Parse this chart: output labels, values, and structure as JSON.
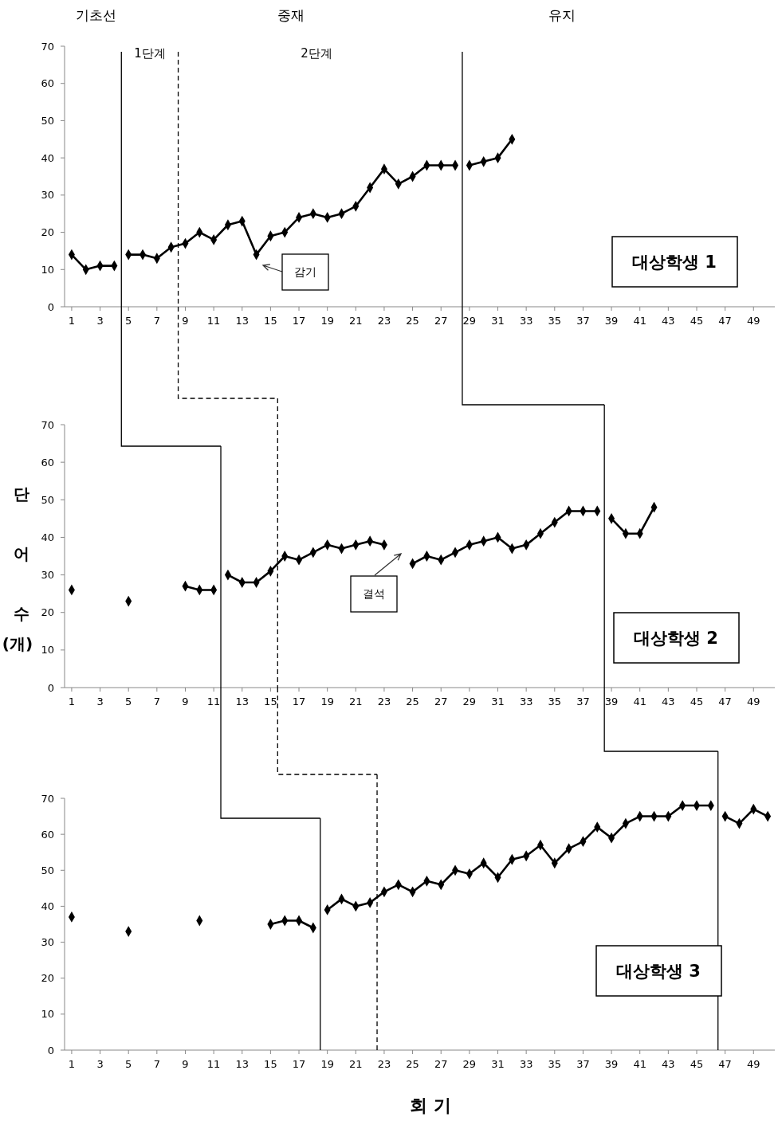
{
  "chart_data": [
    {
      "type": "line",
      "title": "대상학생 1",
      "xlim": [
        0.5,
        50.5
      ],
      "xticks": [
        1,
        3,
        5,
        7,
        9,
        11,
        13,
        15,
        17,
        19,
        21,
        23,
        25,
        27,
        29,
        31,
        33,
        35,
        37,
        39,
        41,
        43,
        45,
        47,
        49
      ],
      "ylim": [
        0,
        70
      ],
      "yticks": [
        0,
        10,
        20,
        30,
        40,
        50,
        60,
        70
      ],
      "marker": "diamond",
      "line_style": "solid",
      "series": [
        {
          "color": "#000000",
          "x": [
            1,
            2,
            3,
            4
          ],
          "values": [
            14,
            10,
            11,
            11
          ]
        },
        {
          "color": "#000000",
          "x": [
            5,
            6,
            7,
            8,
            9,
            10,
            11,
            12,
            13,
            14,
            15,
            16,
            17,
            18,
            19,
            20,
            21,
            22,
            23,
            24,
            25,
            26,
            27,
            28
          ],
          "values": [
            14,
            14,
            13,
            16,
            17,
            20,
            18,
            22,
            23,
            14,
            19,
            20,
            24,
            25,
            24,
            25,
            27,
            32,
            37,
            33,
            35,
            38,
            38,
            38
          ]
        },
        {
          "color": "#000000",
          "x": [
            29,
            30,
            31,
            32
          ],
          "values": [
            38,
            39,
            40,
            45
          ]
        }
      ],
      "ref_lines": [
        {
          "axis": "x",
          "value": 4.5,
          "color": "#000000",
          "line_style": "solid"
        },
        {
          "axis": "x",
          "value": 8.5,
          "color": "#000000",
          "line_style": "dashed"
        },
        {
          "axis": "x",
          "value": 28.5,
          "color": "#000000",
          "line_style": "solid"
        }
      ],
      "annotations": [
        "기초선",
        "중재",
        "유지",
        "1단계",
        "2단계",
        "감기"
      ]
    },
    {
      "type": "line",
      "title": "대상학생 2",
      "ylabel": "단\n어\n수\n(개)",
      "xlim": [
        0.5,
        50.5
      ],
      "xticks": [
        1,
        3,
        5,
        7,
        9,
        11,
        13,
        15,
        17,
        19,
        21,
        23,
        25,
        27,
        29,
        31,
        33,
        35,
        37,
        39,
        41,
        43,
        45,
        47,
        49
      ],
      "ylim": [
        0,
        70
      ],
      "yticks": [
        0,
        10,
        20,
        30,
        40,
        50,
        60,
        70
      ],
      "marker": "diamond",
      "line_style": "solid",
      "series": [
        {
          "color": "#000000",
          "x": [
            1,
            2,
            3,
            4,
            5,
            6,
            7,
            8,
            9,
            10,
            11
          ],
          "values": [
            26,
            null,
            null,
            null,
            23,
            null,
            null,
            null,
            27,
            26,
            26
          ]
        },
        {
          "color": "#000000",
          "x": [
            12,
            13,
            14,
            15,
            16,
            17,
            18,
            19,
            20,
            21,
            22,
            23,
            24,
            25,
            26,
            27,
            28,
            29,
            30,
            31,
            32,
            33,
            34,
            35,
            36,
            37,
            38
          ],
          "values": [
            30,
            28,
            28,
            31,
            35,
            34,
            36,
            38,
            37,
            38,
            39,
            38,
            null,
            33,
            35,
            34,
            36,
            38,
            39,
            40,
            37,
            38,
            41,
            44,
            47,
            47,
            47
          ]
        },
        {
          "color": "#000000",
          "x": [
            39,
            40,
            41,
            42
          ],
          "values": [
            45,
            41,
            41,
            48
          ]
        }
      ],
      "ref_lines": [
        {
          "axis": "x",
          "value": 11.5,
          "color": "#000000",
          "line_style": "solid"
        },
        {
          "axis": "x",
          "value": 15.5,
          "color": "#000000",
          "line_style": "dashed"
        },
        {
          "axis": "x",
          "value": 38.5,
          "color": "#000000",
          "line_style": "solid"
        }
      ],
      "annotations": [
        "결석"
      ]
    },
    {
      "type": "line",
      "title": "대상학생 3",
      "xlabel": "회 기",
      "xlim": [
        0.5,
        50.5
      ],
      "xticks": [
        1,
        3,
        5,
        7,
        9,
        11,
        13,
        15,
        17,
        19,
        21,
        23,
        25,
        27,
        29,
        31,
        33,
        35,
        37,
        39,
        41,
        43,
        45,
        47,
        49
      ],
      "ylim": [
        0,
        70
      ],
      "yticks": [
        0,
        10,
        20,
        30,
        40,
        50,
        60,
        70
      ],
      "marker": "diamond",
      "line_style": "solid",
      "series": [
        {
          "color": "#000000",
          "x": [
            1,
            2,
            3,
            4,
            5,
            6,
            7,
            8,
            9,
            10,
            11,
            12,
            13,
            14,
            15,
            16,
            17,
            18
          ],
          "values": [
            37,
            null,
            null,
            null,
            33,
            null,
            null,
            null,
            null,
            36,
            null,
            null,
            null,
            null,
            35,
            36,
            36,
            34
          ]
        },
        {
          "color": "#000000",
          "x": [
            19,
            20,
            21,
            22,
            23,
            24,
            25,
            26,
            27,
            28,
            29,
            30,
            31,
            32,
            33,
            34,
            35,
            36,
            37,
            38,
            39,
            40,
            41,
            42,
            43,
            44,
            45,
            46
          ],
          "values": [
            39,
            42,
            40,
            41,
            44,
            46,
            44,
            47,
            46,
            50,
            49,
            52,
            48,
            53,
            54,
            57,
            52,
            56,
            58,
            62,
            59,
            63,
            65,
            65,
            65,
            68,
            68,
            68
          ]
        },
        {
          "color": "#000000",
          "x": [
            47,
            48,
            49,
            50
          ],
          "values": [
            65,
            63,
            67,
            65
          ]
        }
      ],
      "ref_lines": [
        {
          "axis": "x",
          "value": 18.5,
          "color": "#000000",
          "line_style": "solid"
        },
        {
          "axis": "x",
          "value": 22.5,
          "color": "#000000",
          "line_style": "dashed"
        },
        {
          "axis": "x",
          "value": 46.5,
          "color": "#000000",
          "line_style": "solid"
        }
      ]
    }
  ]
}
